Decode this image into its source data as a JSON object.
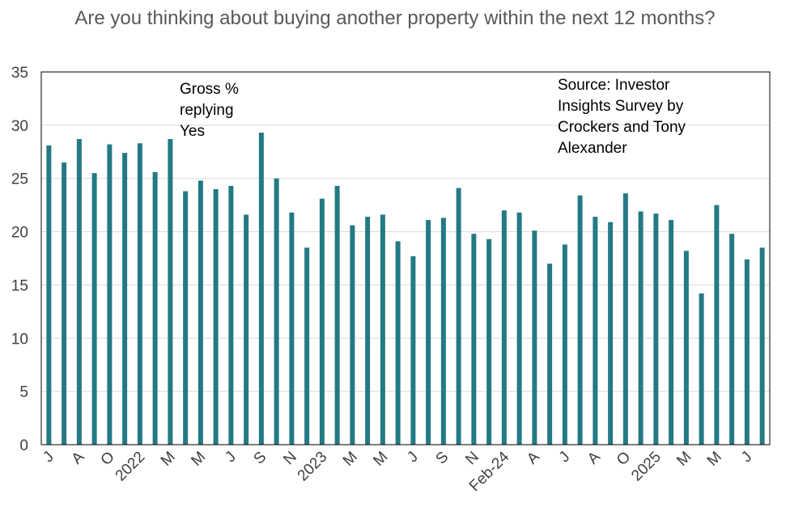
{
  "chart_data": {
    "type": "bar",
    "title": "Are you thinking about buying another property within the next 12 months?",
    "xlabel": "",
    "ylabel": "",
    "ylim": [
      0,
      35
    ],
    "yticks": [
      0,
      5,
      10,
      15,
      20,
      25,
      30,
      35
    ],
    "grid": true,
    "bar_color": "#237a84",
    "categories": [
      "J",
      "",
      "A",
      "",
      "O",
      "",
      "2022",
      "",
      "M",
      "",
      "M",
      "",
      "J",
      "",
      "S",
      "",
      "N",
      "",
      "2023",
      "",
      "M",
      "",
      "M",
      "",
      "J",
      "",
      "S",
      "",
      "N",
      "",
      "Feb-24",
      "",
      "A",
      "",
      "J",
      "",
      "A",
      "",
      "O",
      "",
      "2025",
      "",
      "M",
      "",
      "M",
      "",
      "J",
      ""
    ],
    "values": [
      28.1,
      26.5,
      28.7,
      25.5,
      28.2,
      27.4,
      28.3,
      25.6,
      28.7,
      23.8,
      24.8,
      24.0,
      24.3,
      21.6,
      29.3,
      25.0,
      21.8,
      18.5,
      23.1,
      24.3,
      20.6,
      21.4,
      21.6,
      19.1,
      17.7,
      21.1,
      21.3,
      24.1,
      19.8,
      19.3,
      22.0,
      21.8,
      20.1,
      17.0,
      18.8,
      23.4,
      21.4,
      20.9,
      23.6,
      21.9,
      21.7,
      21.1,
      18.2,
      14.2,
      22.5,
      19.8,
      17.4,
      18.5
    ],
    "annotations": [
      "Gross % replying Yes",
      "Source: Investor Insights Survey by Crockers and Tony Alexander"
    ]
  }
}
